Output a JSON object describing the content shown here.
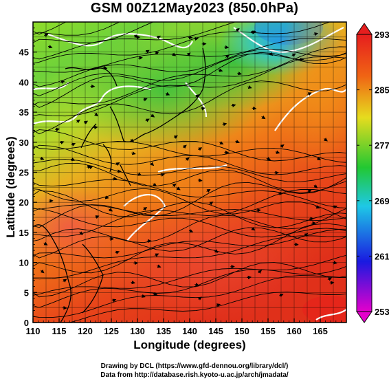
{
  "title": "GSM 00Z12May2023 (850.0hPa)",
  "xaxis": {
    "label": "Longitude (degrees)",
    "min": 110,
    "max": 170,
    "ticks": [
      110,
      115,
      120,
      125,
      130,
      135,
      140,
      145,
      150,
      155,
      160,
      165
    ],
    "tick_labels": [
      "110",
      "115",
      "120",
      "125",
      "130",
      "135",
      "140",
      "145",
      "150",
      "155",
      "160",
      "165"
    ]
  },
  "yaxis": {
    "label": "Latitude  (degrees)",
    "min": 0,
    "max": 50,
    "ticks": [
      0,
      5,
      10,
      15,
      20,
      25,
      30,
      35,
      40,
      45
    ],
    "tick_labels": [
      "0",
      "5",
      "10",
      "15",
      "20",
      "25",
      "30",
      "35",
      "40",
      "45"
    ]
  },
  "colorbar": {
    "min": 253,
    "max": 293,
    "ticks": [
      253,
      261,
      269,
      277,
      285,
      293
    ],
    "tick_labels": [
      "253",
      "261",
      "269",
      "277",
      "285",
      "293"
    ],
    "colors": [
      "#e400cc",
      "#1a1ae0",
      "#1ec8e6",
      "#22c832",
      "#e6dc1e",
      "#f06414",
      "#e61e1e"
    ]
  },
  "footer": {
    "line1": "Drawing by DCL (https://www.gfd-dennou.org/library/dcl/)",
    "line2": "Data from http://database.rish.kyoto-u.ac.jp/arch/jmadata/"
  },
  "chart_data": {
    "type": "heatmap",
    "title": "GSM 00Z12May2023 (850.0hPa)",
    "xlabel": "Longitude (degrees)",
    "ylabel": "Latitude  (degrees)",
    "xlim": [
      110,
      170
    ],
    "ylim": [
      0,
      50
    ],
    "colorbar_range": [
      253,
      293
    ],
    "colorbar_ticks": [
      253,
      261,
      269,
      277,
      285,
      293
    ],
    "grid": true,
    "overlay": "streamlines with arrows, white contour lines, coastlines",
    "fields": [
      {
        "lon": 110,
        "lat": 45,
        "value": 284
      },
      {
        "lon": 125,
        "lat": 45,
        "value": 280
      },
      {
        "lon": 140,
        "lat": 45,
        "value": 276
      },
      {
        "lon": 152,
        "lat": 47,
        "value": 268
      },
      {
        "lon": 165,
        "lat": 45,
        "value": 286
      },
      {
        "lon": 115,
        "lat": 35,
        "value": 284
      },
      {
        "lon": 135,
        "lat": 35,
        "value": 279
      },
      {
        "lon": 150,
        "lat": 35,
        "value": 276
      },
      {
        "lon": 165,
        "lat": 35,
        "value": 287
      },
      {
        "lon": 120,
        "lat": 25,
        "value": 285
      },
      {
        "lon": 135,
        "lat": 25,
        "value": 283
      },
      {
        "lon": 150,
        "lat": 25,
        "value": 286
      },
      {
        "lon": 165,
        "lat": 25,
        "value": 289
      },
      {
        "lon": 115,
        "lat": 15,
        "value": 290
      },
      {
        "lon": 130,
        "lat": 15,
        "value": 289
      },
      {
        "lon": 145,
        "lat": 10,
        "value": 290
      },
      {
        "lon": 160,
        "lat": 5,
        "value": 291
      }
    ]
  }
}
